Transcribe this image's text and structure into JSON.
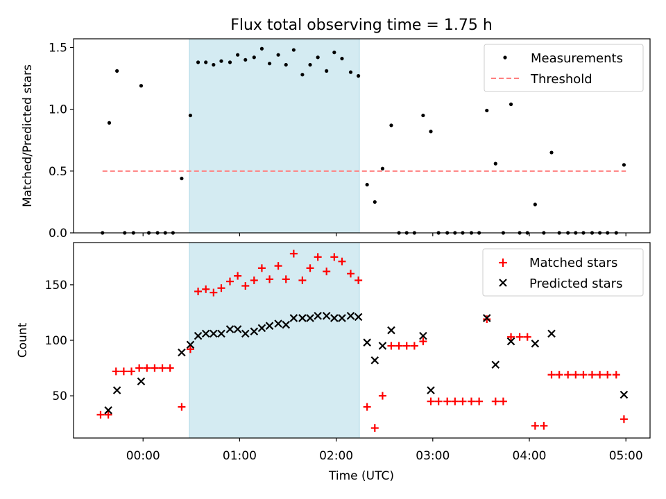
{
  "chart_data": {
    "title": "Flux total observing time = 1.75 h",
    "x_tick_labels": [
      "00:00",
      "01:00",
      "02:00",
      "03:00",
      "04:00",
      "05:00"
    ],
    "xlabel": "Time (UTC)",
    "xlim_hours": [
      -0.72,
      5.25
    ],
    "x_tick_hours": [
      0,
      1,
      2,
      3,
      4,
      5
    ],
    "highlight_span_hours": [
      0.48,
      2.24
    ],
    "colors": {
      "highlight": "#add8e6",
      "measurement": "#000000",
      "threshold": "#ff7f7f",
      "matched": "#ff0000",
      "predicted": "#000000"
    },
    "top": {
      "type": "scatter",
      "ylabel": "Matched/Predicted stars",
      "ylim": [
        0,
        1.57
      ],
      "y_ticks": [
        0,
        0.5,
        1.0,
        1.5
      ],
      "y_tick_labels": [
        "0.0",
        "0.5",
        "1.0",
        "1.5"
      ],
      "legend": [
        "Measurements",
        "Threshold"
      ],
      "legend_position": "top-right",
      "threshold": {
        "value": 0.5,
        "x_range": [
          -0.42,
          5.0
        ]
      },
      "measurements": [
        [
          -0.42,
          0.0
        ],
        [
          -0.35,
          0.89
        ],
        [
          -0.27,
          1.31
        ],
        [
          -0.19,
          0.0
        ],
        [
          -0.1,
          0.0
        ],
        [
          -0.02,
          1.19
        ],
        [
          0.06,
          0.0
        ],
        [
          0.15,
          0.0
        ],
        [
          0.23,
          0.0
        ],
        [
          0.31,
          0.0
        ],
        [
          0.4,
          0.44
        ],
        [
          0.49,
          0.95
        ],
        [
          0.57,
          1.38
        ],
        [
          0.65,
          1.38
        ],
        [
          0.73,
          1.36
        ],
        [
          0.81,
          1.39
        ],
        [
          0.9,
          1.38
        ],
        [
          0.98,
          1.44
        ],
        [
          1.06,
          1.4
        ],
        [
          1.15,
          1.42
        ],
        [
          1.23,
          1.49
        ],
        [
          1.31,
          1.37
        ],
        [
          1.4,
          1.44
        ],
        [
          1.48,
          1.36
        ],
        [
          1.56,
          1.48
        ],
        [
          1.65,
          1.28
        ],
        [
          1.73,
          1.36
        ],
        [
          1.81,
          1.42
        ],
        [
          1.9,
          1.31
        ],
        [
          1.98,
          1.46
        ],
        [
          2.06,
          1.41
        ],
        [
          2.15,
          1.3
        ],
        [
          2.23,
          1.27
        ],
        [
          2.32,
          0.39
        ],
        [
          2.4,
          0.25
        ],
        [
          2.48,
          0.52
        ],
        [
          2.57,
          0.87
        ],
        [
          2.65,
          0.0
        ],
        [
          2.73,
          0.0
        ],
        [
          2.81,
          0.0
        ],
        [
          2.9,
          0.95
        ],
        [
          2.98,
          0.82
        ],
        [
          3.06,
          0.0
        ],
        [
          3.15,
          0.0
        ],
        [
          3.23,
          0.0
        ],
        [
          3.31,
          0.0
        ],
        [
          3.4,
          0.0
        ],
        [
          3.48,
          0.0
        ],
        [
          3.56,
          0.99
        ],
        [
          3.65,
          0.56
        ],
        [
          3.73,
          0.0
        ],
        [
          3.81,
          1.04
        ],
        [
          3.9,
          0.0
        ],
        [
          3.98,
          0.0
        ],
        [
          4.06,
          0.23
        ],
        [
          4.15,
          0.0
        ],
        [
          4.23,
          0.65
        ],
        [
          4.31,
          0.0
        ],
        [
          4.4,
          0.0
        ],
        [
          4.48,
          0.0
        ],
        [
          4.56,
          0.0
        ],
        [
          4.65,
          0.0
        ],
        [
          4.73,
          0.0
        ],
        [
          4.81,
          0.0
        ],
        [
          4.9,
          0.0
        ],
        [
          4.98,
          0.55
        ]
      ]
    },
    "bottom": {
      "type": "scatter",
      "ylabel": "Count",
      "ylim": [
        12,
        188
      ],
      "y_ticks": [
        50,
        100,
        150
      ],
      "y_tick_labels": [
        "50",
        "100",
        "150"
      ],
      "legend": [
        "Matched stars",
        "Predicted stars"
      ],
      "legend_position": "top-right",
      "matched": [
        [
          -0.44,
          33
        ],
        [
          -0.36,
          33
        ],
        [
          -0.28,
          72
        ],
        [
          -0.2,
          72
        ],
        [
          -0.12,
          72
        ],
        [
          -0.04,
          75
        ],
        [
          0.04,
          75
        ],
        [
          0.12,
          75
        ],
        [
          0.2,
          75
        ],
        [
          0.28,
          75
        ],
        [
          0.4,
          40
        ],
        [
          0.49,
          92
        ],
        [
          0.57,
          144
        ],
        [
          0.65,
          146
        ],
        [
          0.73,
          143
        ],
        [
          0.81,
          147
        ],
        [
          0.9,
          153
        ],
        [
          0.98,
          158
        ],
        [
          1.06,
          149
        ],
        [
          1.15,
          154
        ],
        [
          1.23,
          165
        ],
        [
          1.31,
          155
        ],
        [
          1.4,
          167
        ],
        [
          1.48,
          155
        ],
        [
          1.56,
          178
        ],
        [
          1.65,
          154
        ],
        [
          1.73,
          165
        ],
        [
          1.81,
          175
        ],
        [
          1.9,
          162
        ],
        [
          1.98,
          175
        ],
        [
          2.06,
          171
        ],
        [
          2.15,
          160
        ],
        [
          2.23,
          154
        ],
        [
          2.32,
          40
        ],
        [
          2.4,
          21
        ],
        [
          2.48,
          50
        ],
        [
          2.57,
          95
        ],
        [
          2.65,
          95
        ],
        [
          2.73,
          95
        ],
        [
          2.81,
          95
        ],
        [
          2.9,
          99
        ],
        [
          2.98,
          45
        ],
        [
          3.06,
          45
        ],
        [
          3.15,
          45
        ],
        [
          3.23,
          45
        ],
        [
          3.31,
          45
        ],
        [
          3.4,
          45
        ],
        [
          3.48,
          45
        ],
        [
          3.56,
          119
        ],
        [
          3.65,
          45
        ],
        [
          3.73,
          45
        ],
        [
          3.81,
          103
        ],
        [
          3.9,
          103
        ],
        [
          3.98,
          103
        ],
        [
          4.06,
          23
        ],
        [
          4.15,
          23
        ],
        [
          4.23,
          69
        ],
        [
          4.31,
          69
        ],
        [
          4.4,
          69
        ],
        [
          4.48,
          69
        ],
        [
          4.56,
          69
        ],
        [
          4.65,
          69
        ],
        [
          4.73,
          69
        ],
        [
          4.81,
          69
        ],
        [
          4.9,
          69
        ],
        [
          4.98,
          29
        ]
      ],
      "predicted": [
        [
          -0.36,
          37
        ],
        [
          -0.27,
          55
        ],
        [
          -0.02,
          63
        ],
        [
          0.4,
          89
        ],
        [
          0.49,
          96
        ],
        [
          0.57,
          104
        ],
        [
          0.65,
          106
        ],
        [
          0.73,
          106
        ],
        [
          0.81,
          106
        ],
        [
          0.9,
          110
        ],
        [
          0.98,
          110
        ],
        [
          1.06,
          106
        ],
        [
          1.15,
          108
        ],
        [
          1.23,
          111
        ],
        [
          1.31,
          113
        ],
        [
          1.4,
          115
        ],
        [
          1.48,
          114
        ],
        [
          1.56,
          120
        ],
        [
          1.65,
          120
        ],
        [
          1.73,
          120
        ],
        [
          1.81,
          122
        ],
        [
          1.9,
          122
        ],
        [
          1.98,
          120
        ],
        [
          2.06,
          120
        ],
        [
          2.15,
          122
        ],
        [
          2.23,
          121
        ],
        [
          2.32,
          98
        ],
        [
          2.4,
          82
        ],
        [
          2.48,
          95
        ],
        [
          2.57,
          109
        ],
        [
          2.9,
          104
        ],
        [
          2.98,
          55
        ],
        [
          3.56,
          120
        ],
        [
          3.65,
          78
        ],
        [
          3.81,
          99
        ],
        [
          4.06,
          97
        ],
        [
          4.23,
          106
        ],
        [
          4.98,
          51
        ]
      ]
    }
  }
}
